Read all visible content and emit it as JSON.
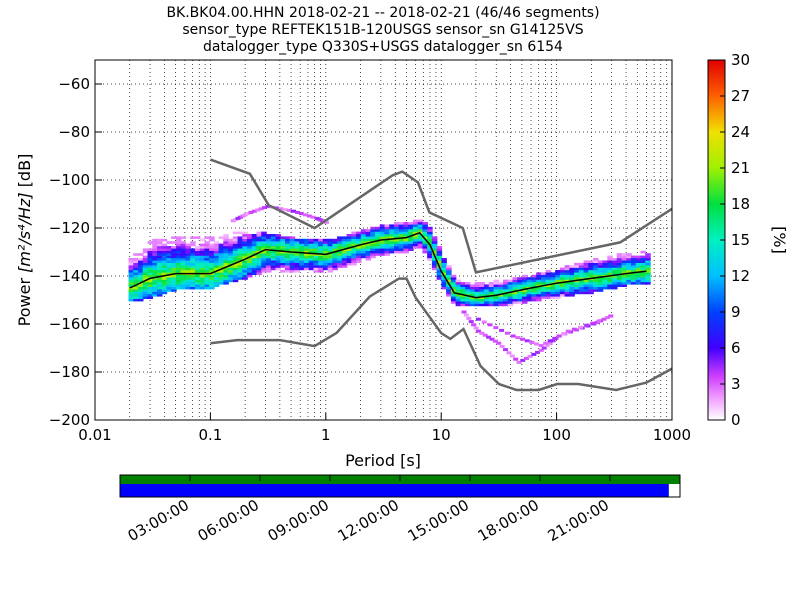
{
  "chart_data": {
    "type": "heatmap",
    "title_lines": [
      "BK.BK04.00.HHN   2018-02-21 -- 2018-02-21  (46/46 segments)",
      "sensor_type REFTEK151B-120USGS sensor_sn G14125VS",
      "datalogger_type Q330S+USGS datalogger_sn 6154"
    ],
    "xlabel": "Period [s]",
    "ylabel_prefix": "Power ",
    "ylabel_units": "[m²/s⁴/Hz]",
    "ylabel_suffix": " [dB]",
    "x_scale": "log",
    "xlim": [
      0.01,
      1000
    ],
    "x_ticks": [
      0.01,
      0.1,
      1,
      10,
      100,
      1000
    ],
    "x_tick_labels": [
      "0.01",
      "0.1",
      "1",
      "10",
      "100",
      "1000"
    ],
    "ylim": [
      -200,
      -50
    ],
    "y_ticks": [
      -60,
      -80,
      -100,
      -120,
      -140,
      -160,
      -180,
      -200
    ],
    "y_tick_labels": [
      "−60",
      "−80",
      "−100",
      "−120",
      "−140",
      "−160",
      "−180",
      "−200"
    ],
    "grid": "dotted",
    "colorbar": {
      "label": "[%]",
      "range": [
        0,
        30
      ],
      "ticks": [
        0,
        3,
        6,
        9,
        12,
        15,
        18,
        21,
        24,
        27,
        30
      ],
      "tick_labels": [
        "0",
        "3",
        "6",
        "9",
        "12",
        "15",
        "18",
        "21",
        "24",
        "27",
        "30"
      ]
    },
    "noise_models": {
      "high": [
        [
          0.1,
          -91.5
        ],
        [
          0.22,
          -97.4
        ],
        [
          0.32,
          -110.5
        ],
        [
          0.8,
          -120
        ],
        [
          3.8,
          -98
        ],
        [
          4.6,
          -96.5
        ],
        [
          6.3,
          -101
        ],
        [
          7.9,
          -113.5
        ],
        [
          15.4,
          -120
        ],
        [
          20,
          -138.5
        ],
        [
          354.8,
          -126
        ],
        [
          1000,
          -112
        ]
      ],
      "low": [
        [
          0.1,
          -168
        ],
        [
          0.17,
          -166.7
        ],
        [
          0.4,
          -166.7
        ],
        [
          0.8,
          -169.2
        ],
        [
          1.24,
          -163.7
        ],
        [
          2.4,
          -148.6
        ],
        [
          4.3,
          -141.1
        ],
        [
          5.0,
          -141.1
        ],
        [
          6.0,
          -149
        ],
        [
          10,
          -163.8
        ],
        [
          12,
          -166.2
        ],
        [
          15.6,
          -162.1
        ],
        [
          21.9,
          -177.5
        ],
        [
          31.6,
          -185
        ],
        [
          45,
          -187.5
        ],
        [
          70,
          -187.5
        ],
        [
          101,
          -185
        ],
        [
          154,
          -185
        ],
        [
          328,
          -187.5
        ],
        [
          600,
          -184.4
        ],
        [
          1000,
          -178.6
        ]
      ]
    },
    "mode_curve": [
      [
        0.02,
        -145
      ],
      [
        0.03,
        -141
      ],
      [
        0.05,
        -139
      ],
      [
        0.1,
        -139
      ],
      [
        0.2,
        -133
      ],
      [
        0.3,
        -129
      ],
      [
        0.5,
        -130
      ],
      [
        1,
        -131
      ],
      [
        2,
        -127
      ],
      [
        3,
        -125
      ],
      [
        5,
        -124
      ],
      [
        6.5,
        -122
      ],
      [
        8,
        -127
      ],
      [
        10,
        -138
      ],
      [
        13,
        -147
      ],
      [
        20,
        -149
      ],
      [
        30,
        -148
      ],
      [
        60,
        -145
      ],
      [
        100,
        -143
      ],
      [
        200,
        -141
      ],
      [
        400,
        -139
      ],
      [
        600,
        -138
      ]
    ],
    "density_band": [
      [
        0.02,
        -150,
        -132
      ],
      [
        0.025,
        -149,
        -131
      ],
      [
        0.03,
        -148,
        -126
      ],
      [
        0.05,
        -145,
        -124
      ],
      [
        0.1,
        -144,
        -124
      ],
      [
        0.2,
        -140,
        -122
      ],
      [
        0.3,
        -137,
        -123
      ],
      [
        0.5,
        -138,
        -125
      ],
      [
        1,
        -138,
        -126
      ],
      [
        2,
        -133,
        -122
      ],
      [
        3,
        -131,
        -120
      ],
      [
        5,
        -129,
        -118
      ],
      [
        6.5,
        -127,
        -117
      ],
      [
        8,
        -133,
        -121
      ],
      [
        10,
        -144,
        -132
      ],
      [
        13,
        -152,
        -142
      ],
      [
        20,
        -152,
        -144
      ],
      [
        40,
        -151,
        -142
      ],
      [
        100,
        -148,
        -138
      ],
      [
        200,
        -146,
        -134
      ],
      [
        400,
        -143,
        -131
      ],
      [
        600,
        -143,
        -130
      ]
    ],
    "outlier_arcs": [
      [
        [
          0.15,
          -117
        ],
        [
          0.2,
          -114
        ],
        [
          0.3,
          -111
        ],
        [
          0.5,
          -113
        ],
        [
          0.8,
          -116
        ],
        [
          1,
          -118
        ]
      ],
      [
        [
          15,
          -155
        ],
        [
          20,
          -163
        ],
        [
          30,
          -168
        ],
        [
          45,
          -176
        ],
        [
          70,
          -171
        ],
        [
          100,
          -165
        ],
        [
          200,
          -160
        ],
        [
          300,
          -156
        ]
      ],
      [
        [
          20,
          -158
        ],
        [
          40,
          -165
        ],
        [
          70,
          -169
        ],
        [
          120,
          -163
        ],
        [
          250,
          -158
        ]
      ]
    ],
    "data_availability": {
      "time_ticks": [
        "03:00:00",
        "06:00:00",
        "09:00:00",
        "12:00:00",
        "15:00:00",
        "18:00:00",
        "21:00:00"
      ],
      "coverage_fraction": 0.98,
      "colors": {
        "top": "#008000",
        "bottom": "#0000ff"
      }
    }
  }
}
